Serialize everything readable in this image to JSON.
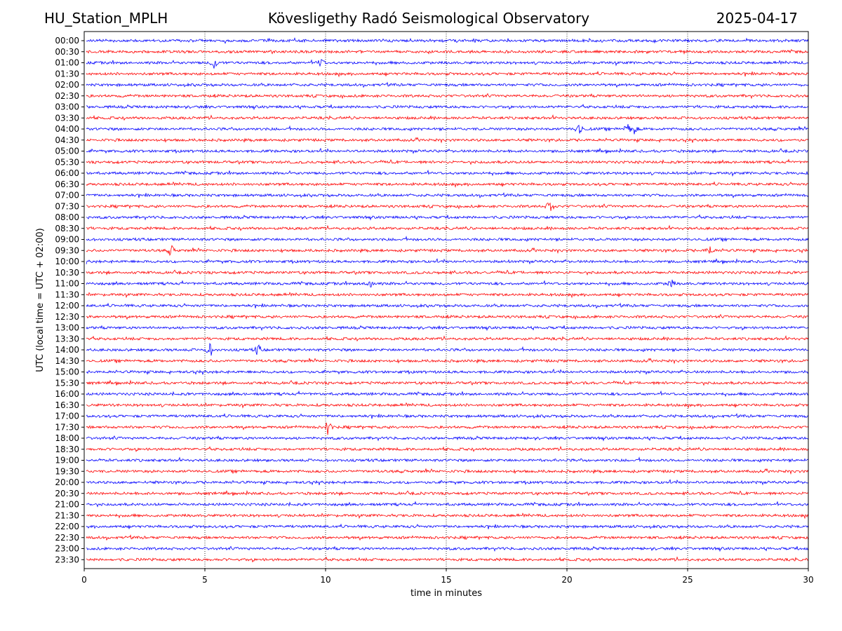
{
  "header": {
    "station": "HU_Station_MPLH",
    "title": "Kövesligethy Radó Seismological Observatory",
    "date": "2025-04-17"
  },
  "chart_data": {
    "type": "line",
    "title": "Kövesligethy Radó Seismological Observatory",
    "xlabel": "time in minutes",
    "ylabel": "UTC (local time = UTC + 02:00)",
    "xlim": [
      0,
      30
    ],
    "x_ticks": [
      0,
      5,
      10,
      15,
      20,
      25,
      30
    ],
    "grid": "vertical dotted at x ticks",
    "series_colors": [
      "#0000ff",
      "#ff0000"
    ],
    "rows": [
      "00:00",
      "00:30",
      "01:00",
      "01:30",
      "02:00",
      "02:30",
      "03:00",
      "03:30",
      "04:00",
      "04:30",
      "05:00",
      "05:30",
      "06:00",
      "06:30",
      "07:00",
      "07:30",
      "08:00",
      "08:30",
      "09:00",
      "09:30",
      "10:00",
      "10:30",
      "11:00",
      "11:30",
      "12:00",
      "12:30",
      "13:00",
      "13:30",
      "14:00",
      "14:30",
      "15:00",
      "15:30",
      "16:00",
      "16:30",
      "17:00",
      "17:30",
      "18:00",
      "18:30",
      "19:00",
      "19:30",
      "20:00",
      "20:30",
      "21:00",
      "21:30",
      "22:00",
      "22:30",
      "23:00",
      "23:30"
    ],
    "events": [
      {
        "row": "01:00",
        "minute": 5.4,
        "amplitude": 9
      },
      {
        "row": "01:00",
        "minute": 9.8,
        "amplitude": 6
      },
      {
        "row": "04:00",
        "minute": 20.5,
        "amplitude": 10
      },
      {
        "row": "04:00",
        "minute": 22.5,
        "amplitude": 6
      },
      {
        "row": "04:00",
        "minute": 22.8,
        "amplitude": 6
      },
      {
        "row": "07:30",
        "minute": 19.3,
        "amplitude": 9
      },
      {
        "row": "09:30",
        "minute": 3.6,
        "amplitude": 6
      },
      {
        "row": "09:30",
        "minute": 25.9,
        "amplitude": 7
      },
      {
        "row": "11:00",
        "minute": 11.8,
        "amplitude": 8
      },
      {
        "row": "11:00",
        "minute": 24.3,
        "amplitude": 6
      },
      {
        "row": "14:00",
        "minute": 5.2,
        "amplitude": 8
      },
      {
        "row": "14:00",
        "minute": 7.2,
        "amplitude": 6
      },
      {
        "row": "17:30",
        "minute": 10.1,
        "amplitude": 12
      }
    ]
  }
}
